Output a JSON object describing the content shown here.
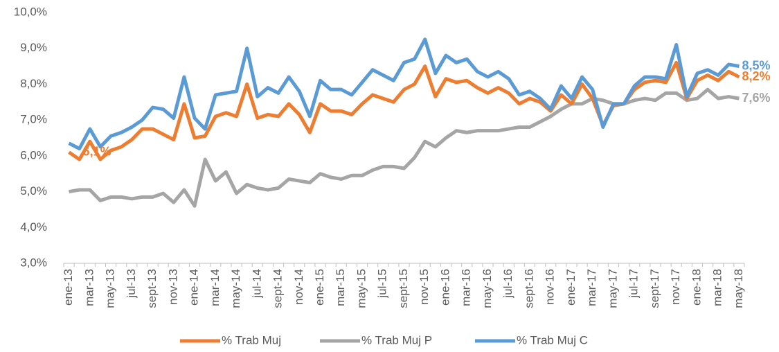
{
  "chart_data": {
    "type": "line",
    "categories": [
      "ene-13",
      null,
      "mar-13",
      null,
      "may-13",
      null,
      "jul-13",
      null,
      "sept-13",
      null,
      "nov-13",
      null,
      "ene-14",
      null,
      "mar-14",
      null,
      "may-14",
      null,
      "jul-14",
      null,
      "sept-14",
      null,
      "nov-14",
      null,
      "ene-15",
      null,
      "mar-15",
      null,
      "may-15",
      null,
      "jul-15",
      null,
      "sept-15",
      null,
      "nov-15",
      null,
      "ene-16",
      null,
      "mar-16",
      null,
      "may-16",
      null,
      "jul-16",
      null,
      "sept-16",
      null,
      "nov-16",
      null,
      "ene-17",
      null,
      "mar-17",
      null,
      "may-17",
      null,
      "jul-17",
      null,
      "sept-17",
      null,
      "nov-17",
      null,
      "ene-18",
      null,
      "mar-18",
      null,
      "may-18"
    ],
    "series": [
      {
        "name": "% Trab Muj",
        "color": "#ED7D31",
        "values": [
          6.1,
          5.9,
          6.4,
          5.9,
          6.15,
          6.25,
          6.45,
          6.75,
          6.75,
          6.6,
          6.45,
          7.45,
          6.5,
          6.55,
          7.1,
          7.2,
          7.1,
          8.0,
          7.05,
          7.15,
          7.1,
          7.45,
          7.15,
          6.65,
          7.45,
          7.25,
          7.25,
          7.15,
          7.45,
          7.7,
          7.6,
          7.5,
          7.85,
          8.0,
          8.5,
          7.65,
          8.15,
          8.05,
          8.1,
          7.9,
          7.75,
          7.9,
          7.75,
          7.45,
          7.6,
          7.5,
          7.25,
          7.7,
          7.45,
          8.0,
          7.6,
          6.85,
          7.4,
          7.45,
          7.85,
          8.05,
          8.1,
          8.05,
          8.6,
          7.6,
          8.1,
          8.25,
          8.1,
          8.35,
          8.2
        ],
        "value_labels": [
          "6,1%",
          null,
          null,
          null,
          null,
          null,
          null,
          null,
          null,
          null,
          null,
          null,
          null,
          null,
          null,
          null,
          null,
          null,
          null,
          null,
          null,
          null,
          null,
          null,
          null,
          null,
          null,
          null,
          null,
          null,
          null,
          null,
          null,
          null,
          null,
          null,
          null,
          null,
          null,
          null,
          null,
          null,
          null,
          null,
          null,
          null,
          null,
          null,
          null,
          null,
          null,
          null,
          null,
          null,
          null,
          null,
          null,
          null,
          null,
          null,
          null,
          null,
          null,
          null,
          "8,2%"
        ]
      },
      {
        "name": "% Trab Muj P",
        "color": "#A5A5A5",
        "values": [
          5.0,
          5.05,
          5.05,
          4.75,
          4.85,
          4.85,
          4.8,
          4.85,
          4.85,
          4.95,
          4.7,
          5.05,
          4.6,
          5.9,
          5.3,
          5.55,
          4.95,
          5.2,
          5.1,
          5.05,
          5.1,
          5.35,
          5.3,
          5.25,
          5.5,
          5.4,
          5.35,
          5.45,
          5.45,
          5.6,
          5.7,
          5.7,
          5.65,
          5.95,
          6.4,
          6.25,
          6.5,
          6.7,
          6.65,
          6.7,
          6.7,
          6.7,
          6.75,
          6.8,
          6.8,
          6.95,
          7.1,
          7.3,
          7.45,
          7.45,
          7.6,
          7.55,
          7.45,
          7.45,
          7.55,
          7.6,
          7.55,
          7.75,
          7.75,
          7.55,
          7.6,
          7.85,
          7.6,
          7.65,
          7.6
        ],
        "value_labels": [
          null,
          null,
          null,
          null,
          null,
          null,
          null,
          null,
          null,
          null,
          null,
          null,
          null,
          null,
          null,
          null,
          null,
          null,
          null,
          null,
          null,
          null,
          null,
          null,
          null,
          null,
          null,
          null,
          null,
          null,
          null,
          null,
          null,
          null,
          null,
          null,
          null,
          null,
          null,
          null,
          null,
          null,
          null,
          null,
          null,
          null,
          null,
          null,
          null,
          null,
          null,
          null,
          null,
          null,
          null,
          null,
          null,
          null,
          null,
          null,
          null,
          null,
          null,
          null,
          "7,6%"
        ]
      },
      {
        "name": "% Trab Muj C",
        "color": "#5B9BD5",
        "values": [
          6.35,
          6.2,
          6.75,
          6.25,
          6.55,
          6.65,
          6.8,
          7.0,
          7.35,
          7.3,
          7.05,
          8.2,
          7.05,
          6.75,
          7.7,
          7.75,
          7.8,
          9.0,
          7.65,
          7.9,
          7.75,
          8.2,
          7.8,
          7.1,
          8.1,
          7.85,
          7.85,
          7.7,
          8.05,
          8.4,
          8.25,
          8.1,
          8.6,
          8.7,
          9.25,
          8.3,
          8.8,
          8.6,
          8.7,
          8.35,
          8.2,
          8.35,
          8.15,
          7.7,
          7.8,
          7.6,
          7.3,
          7.95,
          7.6,
          8.2,
          7.85,
          6.8,
          7.45,
          7.45,
          7.95,
          8.2,
          8.2,
          8.15,
          9.1,
          7.65,
          8.3,
          8.4,
          8.25,
          8.55,
          8.5
        ],
        "value_labels": [
          null,
          null,
          null,
          null,
          null,
          null,
          null,
          null,
          null,
          null,
          null,
          null,
          null,
          null,
          null,
          null,
          null,
          null,
          null,
          null,
          null,
          null,
          null,
          null,
          null,
          null,
          null,
          null,
          null,
          null,
          null,
          null,
          null,
          null,
          null,
          null,
          null,
          null,
          null,
          null,
          null,
          null,
          null,
          null,
          null,
          null,
          null,
          null,
          null,
          null,
          null,
          null,
          null,
          null,
          null,
          null,
          null,
          null,
          null,
          null,
          null,
          null,
          null,
          null,
          "8,5%"
        ]
      }
    ],
    "ylim": [
      3,
      10
    ],
    "yticks": [
      {
        "value": 3,
        "label": "3,0%"
      },
      {
        "value": 4,
        "label": "4,0%"
      },
      {
        "value": 5,
        "label": "5,0%"
      },
      {
        "value": 6,
        "label": "6,0%"
      },
      {
        "value": 7,
        "label": "7,0%"
      },
      {
        "value": 8,
        "label": "8,0%"
      },
      {
        "value": 9,
        "label": "9,0%"
      },
      {
        "value": 10,
        "label": "10,0%"
      }
    ],
    "grid": false,
    "legend": "bottom"
  }
}
